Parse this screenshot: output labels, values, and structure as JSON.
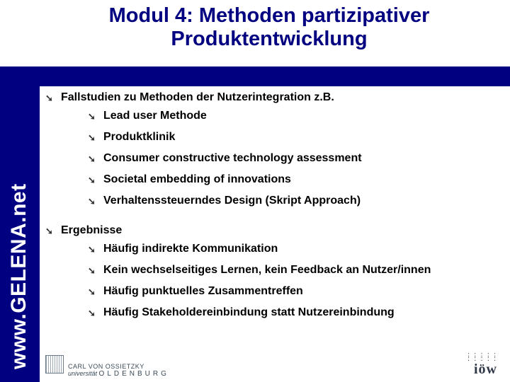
{
  "title": "Modul 4: Methoden partizipativer Produktentwicklung",
  "sidebar": {
    "url": "www.GELENA.net"
  },
  "colors": {
    "accent": "#000080",
    "text": "#000000",
    "bg": "#ffffff"
  },
  "sections": [
    {
      "heading": "Fallstudien zu Methoden der Nutzerintegration z.B.",
      "items": [
        "Lead user Methode",
        "Produktklinik",
        "Consumer constructive technology assessment",
        "Societal embedding of innovations",
        "Verhaltenssteuerndes Design (Skript Approach)"
      ]
    },
    {
      "heading": "Ergebnisse",
      "items": [
        "Häufig indirekte Kommunikation",
        "Kein wechselseitiges Lernen, kein Feedback an Nutzer/innen",
        "Häufig punktuelles Zusammentreffen",
        "Häufig Stakeholdereinbindung statt Nutzereinbindung"
      ]
    }
  ],
  "footer": {
    "uni": {
      "line1": "CARL",
      "line2": "VON",
      "line3": "OSSIETZKY",
      "line4": "universität",
      "line5": "OLDENBURG"
    },
    "iow": "iöw"
  },
  "bullets": {
    "level1": "➘",
    "level2": "➘"
  }
}
